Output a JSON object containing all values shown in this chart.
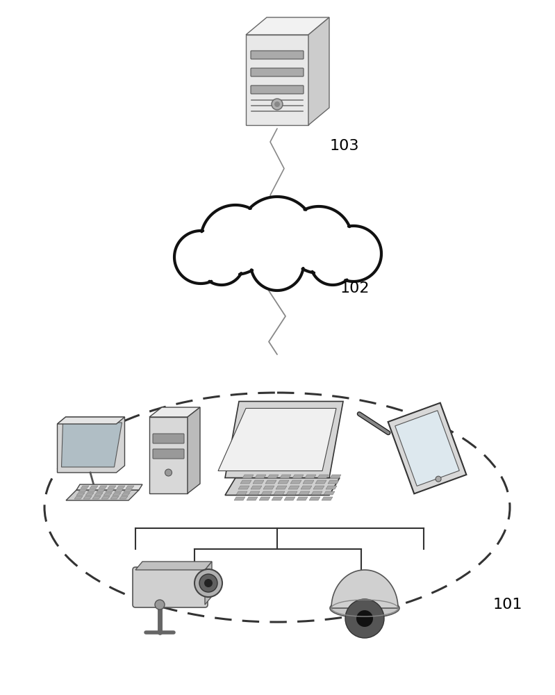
{
  "bg_color": "#ffffff",
  "label_103": "103",
  "label_102": "102",
  "label_101": "101",
  "font_size_labels": 16
}
